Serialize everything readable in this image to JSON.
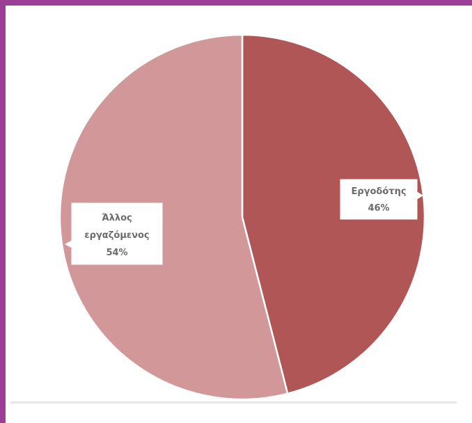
{
  "chart_data": {
    "type": "pie",
    "slices": [
      {
        "label": "Εργοδότης",
        "value": 46,
        "value_text": "46%",
        "color": "#b15656"
      },
      {
        "label": "Άλλος εργαζόμενος",
        "label_lines": [
          "Άλλος",
          "εργαζόμενος"
        ],
        "value": 54,
        "value_text": "54%",
        "color": "#d29799"
      }
    ],
    "start_angle": "12 o'clock",
    "direction": "clockwise",
    "legend": "none",
    "title": ""
  },
  "colors": {
    "frame_border": "#9b3f96",
    "slice_separator": "#ffffff",
    "label_text": "#6b6b6b"
  }
}
